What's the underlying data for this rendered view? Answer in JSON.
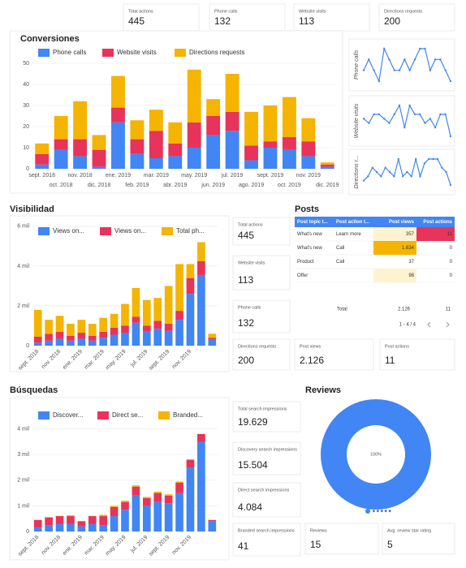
{
  "top_cards": [
    {
      "label": "Total actions",
      "value": 445
    },
    {
      "label": "Phone calls",
      "value": 132
    },
    {
      "label": "Website visits",
      "value": 113
    },
    {
      "label": "Directions requests",
      "value": 200
    }
  ],
  "visibilidad_cards": [
    {
      "label": "Total actions",
      "value": 445
    },
    {
      "label": "Website visits",
      "value": 113
    },
    {
      "label": "Phone calls",
      "value": 132
    },
    {
      "label": "Directions requests",
      "value": 200
    }
  ],
  "posts": {
    "title": "Posts",
    "columns": [
      "Post topic t...",
      "Post action t...",
      "Post views",
      "Post actions"
    ],
    "rows": [
      [
        "What's new",
        "Learn more",
        "357",
        "11"
      ],
      [
        "What's new",
        "Call",
        "1.634",
        "0"
      ],
      [
        "Product",
        "Call",
        "37",
        "0"
      ],
      [
        "Offer",
        null,
        "98",
        "0"
      ]
    ],
    "total_label": "Total",
    "totals": [
      "2.126",
      "11"
    ],
    "pagination": "1 - 4 / 4"
  },
  "posts_cards": [
    {
      "label": "Post views",
      "value": "2.126"
    },
    {
      "label": "Post actions",
      "value": 11
    }
  ],
  "busquedas_cards": [
    {
      "label": "Total search impressions",
      "value": "19.629"
    },
    {
      "label": "Discovery search impressions",
      "value": "15.504"
    },
    {
      "label": "Direct search impressions",
      "value": "4.084"
    },
    {
      "label": "Branded search impressions",
      "value": 41
    }
  ],
  "review_cards": [
    {
      "label": "Reviews",
      "value": 15
    },
    {
      "label": "Avg. review star rating",
      "value": 5
    }
  ],
  "chart_data": [
    {
      "type": "bar",
      "stacked": true,
      "title": "Conversiones",
      "categories": [
        "sept. 2018",
        "oct. 2018",
        "nov. 2018",
        "dic. 2018",
        "ene. 2019",
        "feb. 2019",
        "mar. 2019",
        "abr. 2019",
        "may. 2019",
        "jun. 2019",
        "jul. 2019",
        "ago. 2019",
        "sept. 2019",
        "oct. 2019",
        "nov. 2019",
        "dic. 2019"
      ],
      "series": [
        {
          "name": "Phone calls",
          "color": "#4285f4",
          "values": [
            2,
            9,
            6,
            1,
            22,
            7,
            5,
            6,
            10,
            16,
            18,
            4,
            10,
            9,
            6,
            1
          ]
        },
        {
          "name": "Website visits",
          "color": "#e8335a",
          "values": [
            5,
            5,
            8,
            8,
            7,
            7,
            13,
            6,
            12,
            9,
            9,
            7,
            3,
            6,
            7,
            1
          ]
        },
        {
          "name": "Directions requests",
          "color": "#f4b400",
          "values": [
            5,
            11,
            18,
            7,
            15,
            9,
            10,
            10,
            25,
            8,
            18,
            16,
            17,
            19,
            11,
            1
          ]
        }
      ],
      "ylim": [
        0,
        50
      ],
      "yticks": [
        0,
        10,
        20,
        30,
        40,
        50
      ],
      "grid": true
    },
    {
      "type": "line",
      "title": "Phone calls",
      "color": "#4285f4",
      "values": [
        5,
        6,
        5,
        4,
        7,
        6,
        5,
        5,
        6,
        5,
        6,
        7,
        7,
        5,
        6,
        6,
        5,
        4
      ]
    },
    {
      "type": "line",
      "title": "Website visits",
      "color": "#4285f4",
      "values": [
        5,
        4,
        6,
        6,
        5,
        4,
        6,
        8,
        3,
        8,
        6,
        6,
        4,
        5,
        3,
        6,
        6,
        1
      ]
    },
    {
      "type": "line",
      "title": "Directions r...",
      "color": "#4285f4",
      "values": [
        3,
        4,
        6,
        5,
        4,
        6,
        5,
        4,
        8,
        4,
        5,
        4,
        8,
        4,
        7,
        8,
        8,
        8,
        6,
        5,
        2
      ]
    },
    {
      "type": "bar",
      "stacked": true,
      "title": "Visibilidad",
      "categories": [
        "sept. 2018",
        null,
        "nov. 2018",
        null,
        "ene. 2019",
        null,
        "mar. 2019",
        null,
        "may. 2019",
        null,
        "jul. 2019",
        null,
        "sept. 2019",
        null,
        "nov. 2019",
        null,
        null
      ],
      "series": [
        {
          "name": "Views on...",
          "color": "#4285f4",
          "values": [
            150,
            250,
            350,
            250,
            350,
            250,
            400,
            550,
            650,
            1150,
            700,
            850,
            750,
            1300,
            2600,
            3550,
            300
          ]
        },
        {
          "name": "Views on...",
          "color": "#e8335a",
          "values": [
            300,
            350,
            350,
            250,
            300,
            250,
            300,
            350,
            350,
            300,
            300,
            400,
            350,
            450,
            800,
            700,
            100
          ]
        },
        {
          "name": "Total ph...",
          "color": "#f4b400",
          "values": [
            1350,
            700,
            800,
            600,
            650,
            600,
            700,
            700,
            1100,
            1450,
            1300,
            1150,
            1900,
            2350,
            700,
            950,
            200
          ]
        }
      ],
      "ylim": [
        0,
        6200
      ],
      "yticks": [
        0,
        {
          "value": 2000,
          "label": "2 mil"
        },
        {
          "value": 4000,
          "label": "4 mil"
        },
        {
          "value": 6000,
          "label": "6 mil"
        }
      ],
      "grid": true
    },
    {
      "type": "bar",
      "stacked": true,
      "title": "Búsquedas",
      "categories": [
        "sept. 2018",
        null,
        "nov. 2018",
        null,
        "ene. 2019",
        null,
        "mar. 2019",
        null,
        "may. 2019",
        null,
        "jul. 2019",
        null,
        "sept. 2019",
        null,
        "nov. 2019",
        null,
        null
      ],
      "series": [
        {
          "name": "Discover...",
          "color": "#4285f4",
          "values": [
            150,
            250,
            300,
            300,
            200,
            300,
            250,
            600,
            850,
            1400,
            1000,
            1150,
            1100,
            1500,
            2500,
            3500,
            400
          ]
        },
        {
          "name": "Direct se...",
          "color": "#e8335a",
          "values": [
            300,
            300,
            300,
            300,
            200,
            300,
            350,
            350,
            300,
            350,
            300,
            350,
            300,
            400,
            300,
            300,
            50
          ]
        },
        {
          "name": "Branded...",
          "color": "#f4b400",
          "values": [
            10,
            10,
            10,
            30,
            10,
            10,
            50,
            50,
            50,
            50,
            50,
            50,
            50,
            50,
            10,
            10,
            5
          ]
        }
      ],
      "ylim": [
        0,
        4100
      ],
      "yticks": [
        0,
        {
          "value": 1000,
          "label": "1 mil"
        },
        {
          "value": 2000,
          "label": "2 mil"
        },
        {
          "value": 3000,
          "label": "3 mil"
        },
        {
          "value": 4000,
          "label": "4 mil"
        }
      ],
      "grid": true
    },
    {
      "type": "pie",
      "title": "Reviews",
      "categories": [
        "★★★★★"
      ],
      "values": [
        100
      ],
      "value_labels": [
        "100%"
      ],
      "colors": [
        "#4285f4"
      ]
    }
  ]
}
